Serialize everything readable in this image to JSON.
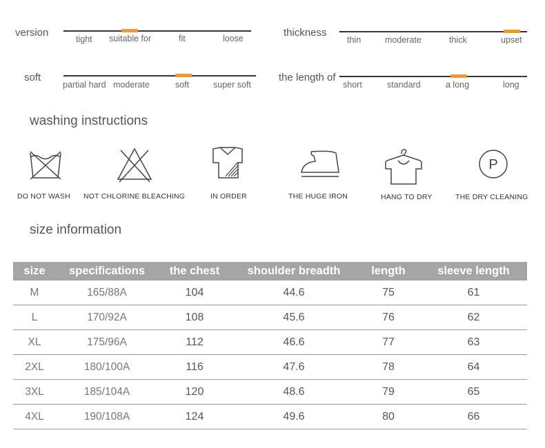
{
  "scales": [
    {
      "label": "version",
      "options": [
        "tight",
        "suitable for",
        "fit",
        "loose"
      ],
      "selected_index": 1
    },
    {
      "label": "thickness",
      "options": [
        "thin",
        "moderate",
        "thick",
        "upset"
      ],
      "selected_index": 3
    },
    {
      "label": "soft",
      "options": [
        "partial hard",
        "moderate",
        "soft",
        "super soft"
      ],
      "selected_index": 2
    },
    {
      "label": "the length of",
      "options": [
        "short",
        "standard",
        "a long",
        "long"
      ],
      "selected_index": 2
    }
  ],
  "accent_color": "#e89a3c",
  "washing": {
    "title": "washing instructions",
    "items": [
      {
        "icon": "do-not-wash-icon",
        "label": "DO NOT WASH"
      },
      {
        "icon": "no-chlorine-bleach-icon",
        "label": "NOT CHLORINE BLEACHING"
      },
      {
        "icon": "in-order-shirt-icon",
        "label": "IN ORDER"
      },
      {
        "icon": "iron-icon",
        "label": "THE HUGE IRON"
      },
      {
        "icon": "hang-to-dry-icon",
        "label": "HANG TO DRY"
      },
      {
        "icon": "dry-cleaning-icon",
        "label": "THE DRY CLEANING",
        "symbol": "P"
      }
    ]
  },
  "size_info": {
    "title": "size information",
    "headers": [
      "size",
      "specifications",
      "the chest",
      "shoulder breadth",
      "length",
      "sleeve length"
    ],
    "rows": [
      [
        "M",
        "165/88A",
        "104",
        "44.6",
        "75",
        "61"
      ],
      [
        "L",
        "170/92A",
        "108",
        "45.6",
        "76",
        "62"
      ],
      [
        "XL",
        "175/96A",
        "112",
        "46.6",
        "77",
        "63"
      ],
      [
        "2XL",
        "180/100A",
        "116",
        "47.6",
        "78",
        "64"
      ],
      [
        "3XL",
        "185/104A",
        "120",
        "48.6",
        "79",
        "65"
      ],
      [
        "4XL",
        "190/108A",
        "124",
        "49.6",
        "80",
        "66"
      ]
    ]
  }
}
